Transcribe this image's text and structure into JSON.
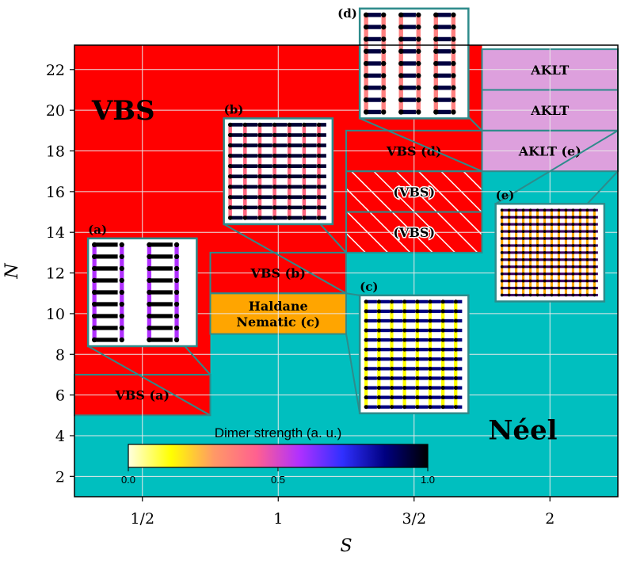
{
  "chart_data": {
    "type": "heatmap",
    "xlabel": "S",
    "ylabel": "N",
    "x_categories": [
      "1/2",
      "1",
      "3/2",
      "2"
    ],
    "y_ticks": [
      2,
      4,
      6,
      8,
      10,
      12,
      14,
      16,
      18,
      20,
      22
    ],
    "ylim": [
      1,
      23.2
    ],
    "grid": true,
    "colors": {
      "vbs": "#ff0000",
      "neel": "#00bfbf",
      "nematic": "#ffa500",
      "aklt": "#dda0dd",
      "inset_border": "#2e8b8b",
      "grid": "#e8e8e8"
    },
    "regions": [
      {
        "col": 0,
        "n_min": 1,
        "n_max": 5,
        "phase": "neel",
        "label": ""
      },
      {
        "col": 0,
        "n_min": 5,
        "n_max": 7,
        "phase": "vbs",
        "label": "VBS (a)"
      },
      {
        "col": 0,
        "n_min": 7,
        "n_max": 23.2,
        "phase": "vbs",
        "label": ""
      },
      {
        "col": 1,
        "n_min": 1,
        "n_max": 9,
        "phase": "neel",
        "label": ""
      },
      {
        "col": 1,
        "n_min": 9,
        "n_max": 11,
        "phase": "nematic",
        "label": "Haldane Nematic (c)"
      },
      {
        "col": 1,
        "n_min": 11,
        "n_max": 13,
        "phase": "vbs",
        "label": "VBS (b)"
      },
      {
        "col": 1,
        "n_min": 13,
        "n_max": 23.2,
        "phase": "vbs",
        "label": ""
      },
      {
        "col": 2,
        "n_min": 1,
        "n_max": 13,
        "phase": "neel",
        "label": ""
      },
      {
        "col": 2,
        "n_min": 13,
        "n_max": 15,
        "phase": "vbs_hatched",
        "label": "(VBS)"
      },
      {
        "col": 2,
        "n_min": 15,
        "n_max": 17,
        "phase": "vbs_hatched",
        "label": "(VBS)"
      },
      {
        "col": 2,
        "n_min": 17,
        "n_max": 19,
        "phase": "vbs",
        "label": "VBS (d)"
      },
      {
        "col": 2,
        "n_min": 19,
        "n_max": 23.2,
        "phase": "vbs",
        "label": ""
      },
      {
        "col": 3,
        "n_min": 1,
        "n_max": 17,
        "phase": "neel",
        "label": ""
      },
      {
        "col": 3,
        "n_min": 17,
        "n_max": 19,
        "phase": "aklt",
        "label": "AKLT (e)"
      },
      {
        "col": 3,
        "n_min": 19,
        "n_max": 21,
        "phase": "aklt",
        "label": "AKLT"
      },
      {
        "col": 3,
        "n_min": 21,
        "n_max": 23,
        "phase": "aklt",
        "label": "AKLT"
      }
    ],
    "annotations": [
      {
        "text": "VBS",
        "col": 0.36,
        "n": 20
      },
      {
        "text": "Néel",
        "col": 3.3,
        "n": 4.3
      }
    ],
    "insets": [
      {
        "letter": "(a)",
        "source_col": 0,
        "source_n": [
          5,
          7
        ],
        "n_range": [
          8.4,
          13.7
        ],
        "col_range": [
          0.1,
          0.9
        ],
        "vertical_color": "#b030ff",
        "horizontal_color": "#000000",
        "rows": 9,
        "cols": 4
      },
      {
        "letter": "(b)",
        "source_col": 1,
        "source_n": [
          11,
          13
        ],
        "n_range": [
          14.4,
          19.6
        ],
        "col_range": [
          1.1,
          1.9
        ],
        "vertical_color": "#ff6680",
        "horizontal_color": "#000033",
        "rows": 10,
        "cols": 7
      },
      {
        "letter": "(c)",
        "source_col": 1,
        "source_n": [
          9,
          11
        ],
        "n_range": [
          5.1,
          10.9
        ],
        "col_range": [
          2.1,
          2.9
        ],
        "vertical_color": "#ffff00",
        "horizontal_color": "#000080",
        "rows": 12,
        "cols": 8
      },
      {
        "letter": "(d)",
        "source_col": 2,
        "source_n": [
          17,
          19
        ],
        "n_range": [
          19.6,
          25.0
        ],
        "col_range": [
          2.1,
          2.9
        ],
        "vertical_color": "#ff8080",
        "horizontal_color": "#000040",
        "rows": 9,
        "cols": 6
      },
      {
        "letter": "(e)",
        "source_col": 3,
        "source_n": [
          17,
          19
        ],
        "n_range": [
          10.6,
          15.4
        ],
        "col_range": [
          3.1,
          3.9
        ],
        "vertical_color": "#ffa500",
        "horizontal_color": "#400060",
        "rows": 13,
        "cols": 14
      }
    ],
    "colorbar": {
      "title": "Dimer strength (a. u.)",
      "min": 0.0,
      "max": 1.0,
      "ticks": [
        "0.0",
        "0.5",
        "1.0"
      ],
      "colormap": [
        "#ffffe0",
        "#ffff00",
        "#ff9966",
        "#ff6090",
        "#b030ff",
        "#3030ff",
        "#000080",
        "#000000"
      ]
    }
  }
}
